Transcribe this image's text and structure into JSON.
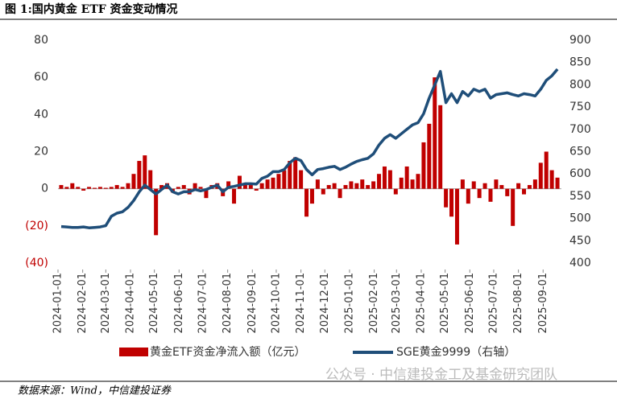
{
  "chart_data": {
    "type": "combo",
    "title": "图 1:国内黄金 ETF 资金变动情况",
    "source": "数据来源：Wind，中信建投证券",
    "watermark": "公众号 · 中信建投金工及基金研究团队",
    "x": [
      "2024-01-05",
      "2024-01-12",
      "2024-01-19",
      "2024-01-26",
      "2024-02-02",
      "2024-02-09",
      "2024-02-16",
      "2024-02-23",
      "2024-03-01",
      "2024-03-08",
      "2024-03-15",
      "2024-03-22",
      "2024-03-29",
      "2024-04-05",
      "2024-04-12",
      "2024-04-19",
      "2024-04-26",
      "2024-05-03",
      "2024-05-10",
      "2024-05-17",
      "2024-05-24",
      "2024-05-31",
      "2024-06-07",
      "2024-06-14",
      "2024-06-21",
      "2024-06-28",
      "2024-07-05",
      "2024-07-12",
      "2024-07-19",
      "2024-07-26",
      "2024-08-02",
      "2024-08-09",
      "2024-08-16",
      "2024-08-23",
      "2024-08-30",
      "2024-09-06",
      "2024-09-13",
      "2024-09-20",
      "2024-09-27",
      "2024-10-04",
      "2024-10-11",
      "2024-10-18",
      "2024-10-25",
      "2024-11-01",
      "2024-11-08",
      "2024-11-15",
      "2024-11-22",
      "2024-11-29",
      "2024-12-06",
      "2024-12-13",
      "2024-12-20",
      "2024-12-27",
      "2025-01-03",
      "2025-01-10",
      "2025-01-17",
      "2025-01-24",
      "2025-01-31",
      "2025-02-07",
      "2025-02-14",
      "2025-02-21",
      "2025-02-28",
      "2025-03-07",
      "2025-03-14",
      "2025-03-21",
      "2025-03-28",
      "2025-04-04",
      "2025-04-11",
      "2025-04-18",
      "2025-04-25",
      "2025-05-02",
      "2025-05-09",
      "2025-05-16",
      "2025-05-23",
      "2025-05-30",
      "2025-06-06",
      "2025-06-13",
      "2025-06-20",
      "2025-06-27",
      "2025-07-04",
      "2025-07-11",
      "2025-07-18",
      "2025-07-25",
      "2025-08-01",
      "2025-08-08",
      "2025-08-15",
      "2025-08-22",
      "2025-08-29",
      "2025-09-05",
      "2025-09-12",
      "2025-09-19"
    ],
    "series": [
      {
        "name": "黄金ETF资金净流入额（亿元）",
        "type": "bar",
        "color": "#c00000",
        "values": [
          2,
          1,
          3,
          1,
          -1,
          1,
          0.5,
          1,
          0.5,
          1,
          2,
          1,
          3,
          8,
          15,
          18,
          10,
          -25,
          2,
          3,
          -2,
          1,
          2,
          -3,
          3,
          1,
          -5,
          2,
          3,
          -4,
          4,
          -8,
          7,
          3,
          2,
          -1,
          3,
          5,
          6,
          8,
          10,
          15,
          17,
          10,
          -15,
          -8,
          5,
          -3,
          2,
          3,
          -5,
          2,
          4,
          3,
          5,
          2,
          4,
          8,
          12,
          10,
          -3,
          6,
          12,
          5,
          8,
          25,
          35,
          60,
          45,
          -10,
          -15,
          -30,
          5,
          -8,
          4,
          -5,
          3,
          -7,
          5,
          2,
          -4,
          -20,
          3,
          -3,
          2,
          5,
          14,
          20,
          10,
          6
        ]
      },
      {
        "name": "SGE黄金9999（右轴）",
        "type": "line",
        "axis": "y2",
        "color": "#1f4e79",
        "values": [
          482,
          481,
          480,
          480,
          481,
          479,
          480,
          481,
          484,
          505,
          512,
          515,
          525,
          540,
          560,
          575,
          565,
          555,
          565,
          575,
          560,
          555,
          560,
          560,
          565,
          562,
          565,
          570,
          575,
          560,
          570,
          572,
          575,
          578,
          578,
          577,
          590,
          595,
          605,
          605,
          610,
          625,
          635,
          630,
          610,
          598,
          610,
          612,
          615,
          617,
          610,
          615,
          622,
          628,
          632,
          635,
          645,
          665,
          680,
          688,
          680,
          690,
          700,
          710,
          715,
          735,
          770,
          800,
          830,
          760,
          780,
          760,
          785,
          775,
          790,
          785,
          790,
          770,
          778,
          780,
          782,
          778,
          775,
          780,
          778,
          775,
          790,
          810,
          820,
          835
        ]
      }
    ],
    "xlim": [
      "2024-01-01",
      "2025-09-24"
    ],
    "xticks": [
      "2024-01-01",
      "2024-02-01",
      "2024-03-01",
      "2024-04-01",
      "2024-05-01",
      "2024-06-01",
      "2024-07-01",
      "2024-08-01",
      "2024-09-01",
      "2024-10-01",
      "2024-11-01",
      "2024-12-01",
      "2025-01-01",
      "2025-02-01",
      "2025-03-01",
      "2025-04-01",
      "2025-05-01",
      "2025-06-01",
      "2025-07-01",
      "2025-08-01",
      "2025-09-01"
    ],
    "ylim": [
      -40,
      80
    ],
    "yticks": [
      80,
      60,
      40,
      20,
      0,
      {
        "value": -20,
        "label": "(20)"
      },
      {
        "value": -40,
        "label": "(40)"
      }
    ],
    "y2lim": [
      400,
      900
    ],
    "y2ticks": [
      900,
      850,
      800,
      750,
      700,
      650,
      600,
      550,
      500,
      450,
      400
    ]
  }
}
